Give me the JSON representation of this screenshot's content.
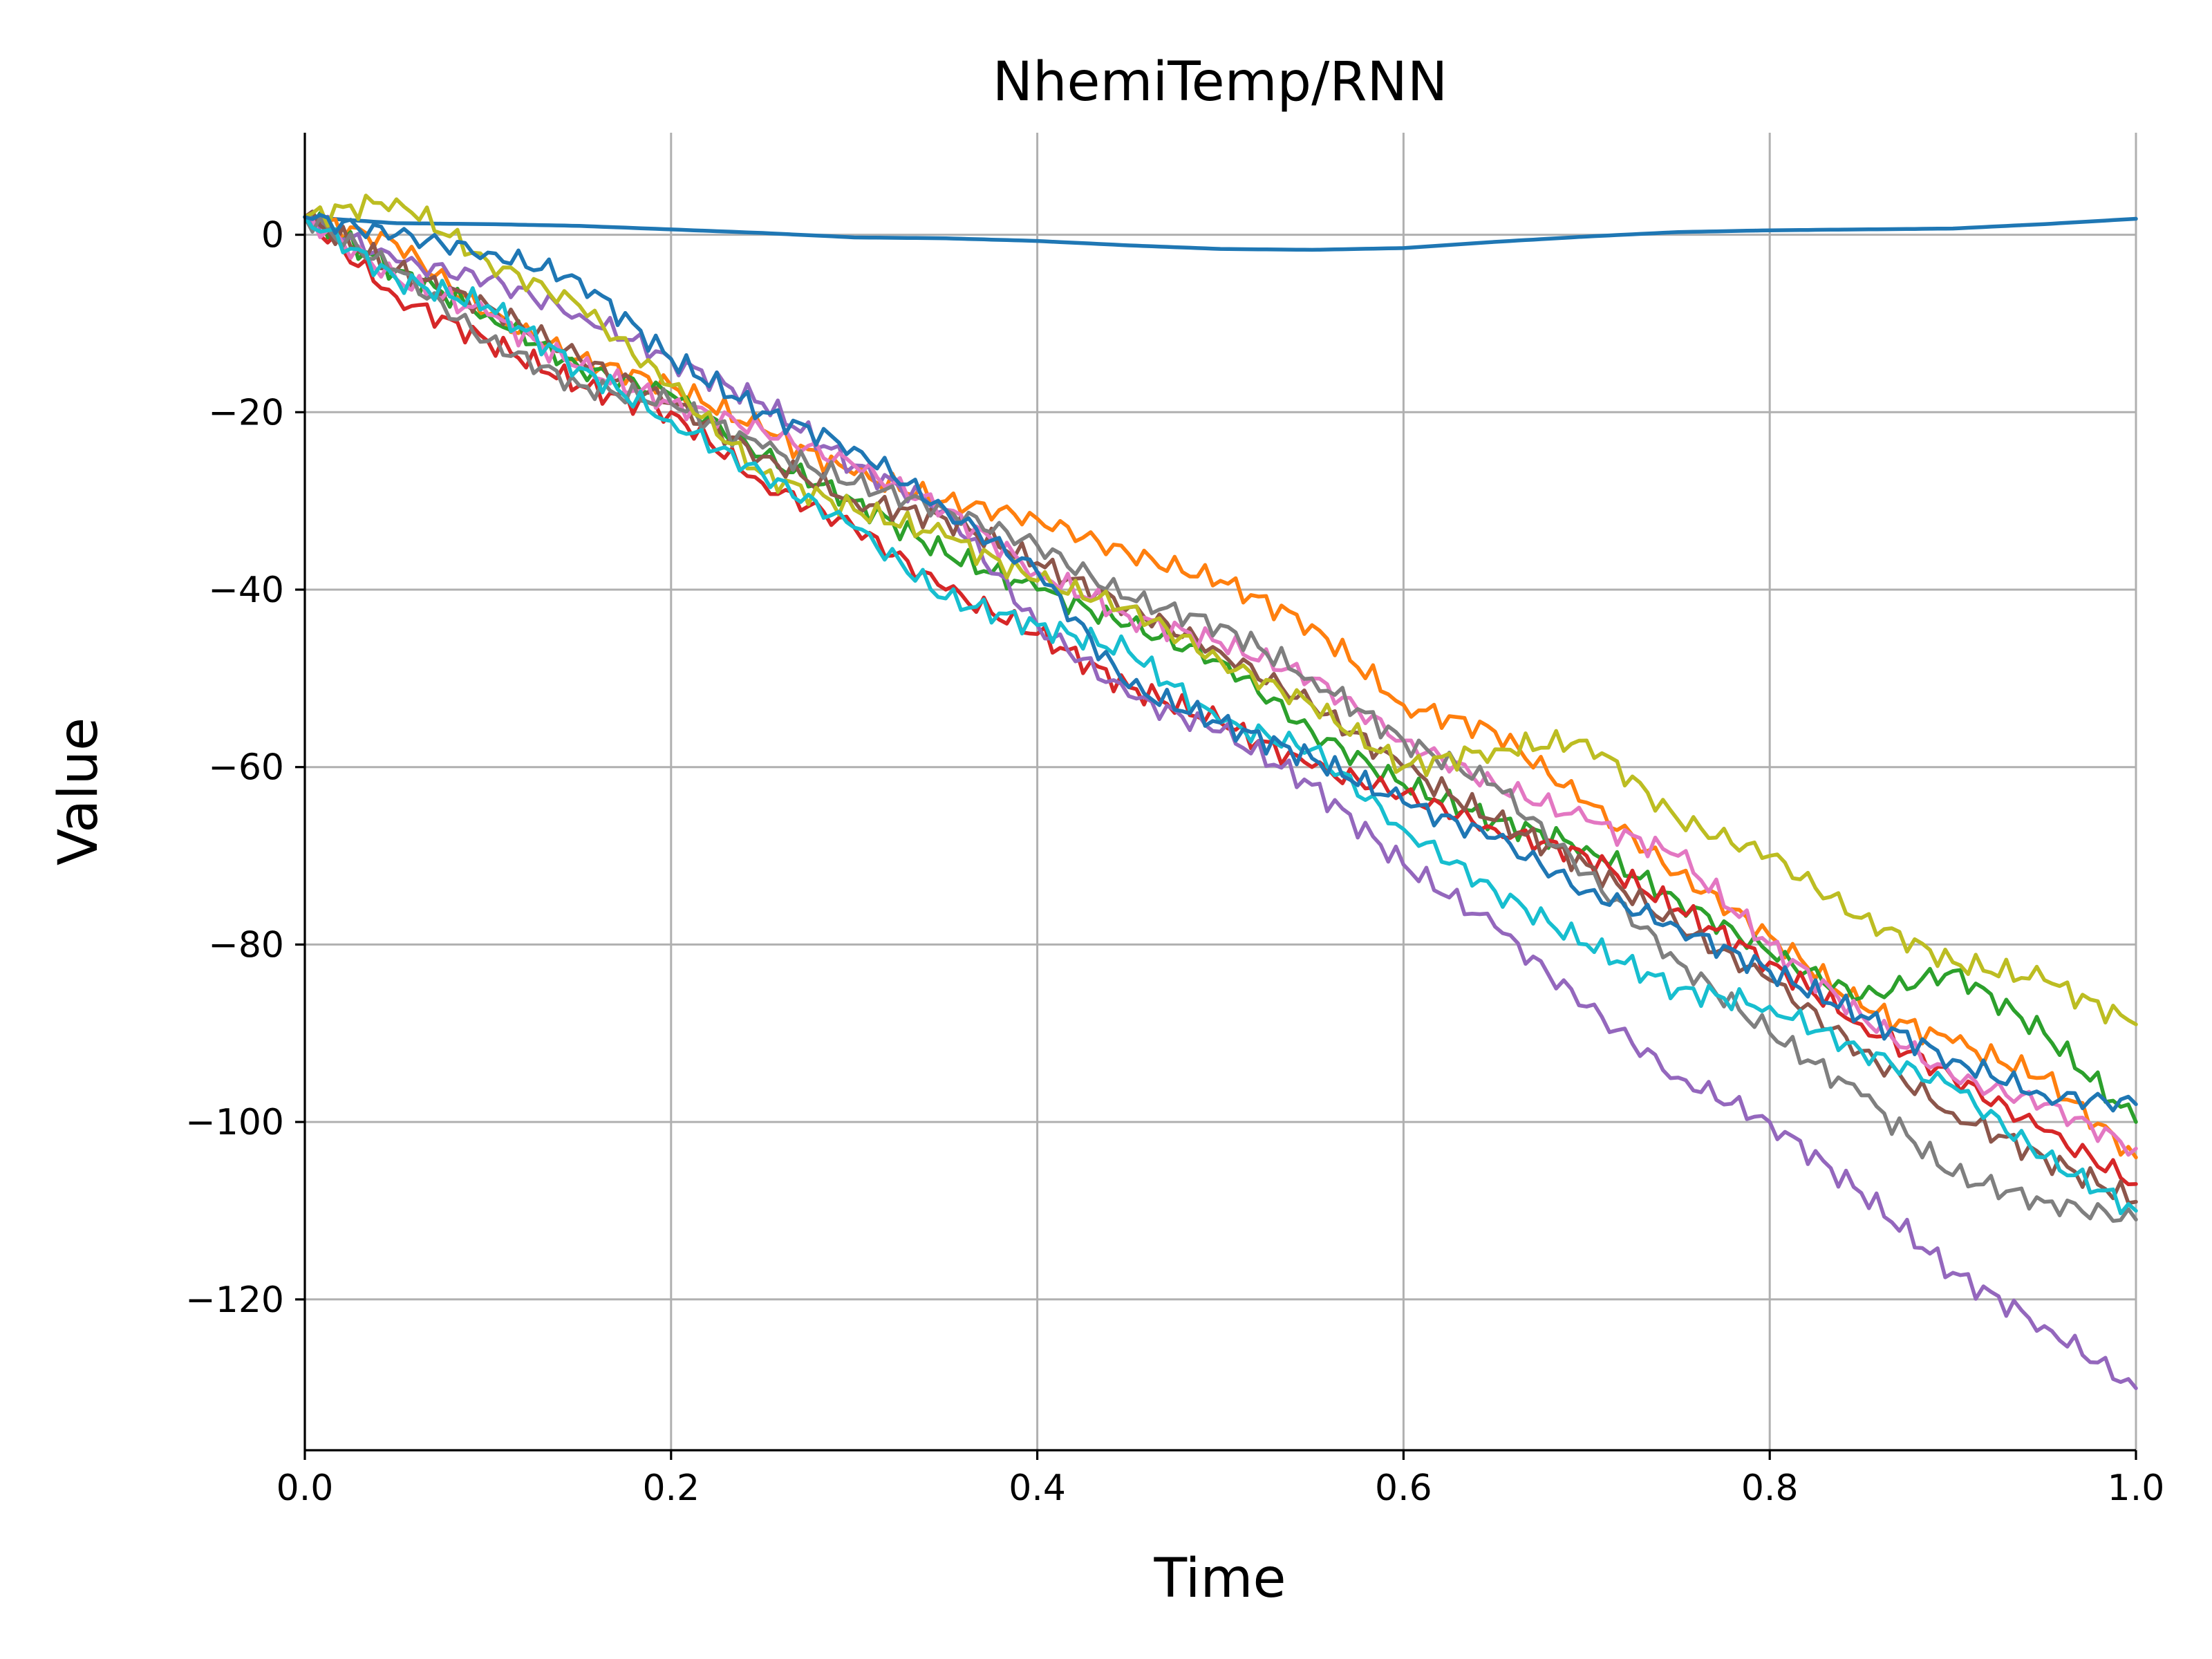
{
  "chart_data": {
    "type": "line",
    "title": "NhemiTemp/RNN",
    "xlabel": "Time",
    "ylabel": "Value",
    "xlim": [
      0.0,
      1.0
    ],
    "ylim": [
      -137,
      11.5
    ],
    "grid": true,
    "legend": "none",
    "xticks": [
      0.0,
      0.2,
      0.4,
      0.6,
      0.8,
      1.0
    ],
    "xtick_labels": [
      "0.0",
      "0.2",
      "0.4",
      "0.6",
      "0.8",
      "1.0"
    ],
    "yticks": [
      0,
      -20,
      -40,
      -60,
      -80,
      -100,
      -120
    ],
    "ytick_labels": [
      "0",
      "−20",
      "−40",
      "−60",
      "−80",
      "−100",
      "−120"
    ],
    "series": [
      {
        "color": "#1f77b4",
        "x": [
          0.0,
          0.05,
          0.1,
          0.15,
          0.2,
          0.25,
          0.3,
          0.35,
          0.4,
          0.45,
          0.5,
          0.55,
          0.6,
          0.65,
          0.7,
          0.75,
          0.8,
          0.85,
          0.9,
          0.95,
          1.0
        ],
        "y": [
          2,
          1.3,
          1.2,
          1.0,
          0.6,
          0.2,
          -0.3,
          -0.4,
          -0.7,
          -1.2,
          -1.6,
          -1.7,
          -1.5,
          -0.8,
          -0.2,
          0.3,
          0.5,
          0.6,
          0.7,
          1.2,
          1.8
        ]
      },
      {
        "color": "#ff7f0e",
        "x": [
          0.0,
          0.05,
          0.1,
          0.15,
          0.2,
          0.25,
          0.3,
          0.35,
          0.4,
          0.45,
          0.5,
          0.55,
          0.6,
          0.65,
          0.7,
          0.75,
          0.8,
          0.85,
          0.9,
          0.95,
          1.0
        ],
        "y": [
          2,
          -1,
          -9,
          -14,
          -17,
          -22,
          -27,
          -30,
          -32,
          -36,
          -39,
          -44,
          -53,
          -56,
          -64,
          -72,
          -79,
          -87,
          -91,
          -95,
          -104
        ]
      },
      {
        "color": "#2ca02c",
        "x": [
          0.0,
          0.05,
          0.1,
          0.15,
          0.2,
          0.25,
          0.3,
          0.35,
          0.4,
          0.45,
          0.5,
          0.55,
          0.6,
          0.65,
          0.7,
          0.75,
          0.8,
          0.85,
          0.9,
          0.95,
          1.0
        ],
        "y": [
          2,
          -4,
          -9,
          -15,
          -18,
          -25,
          -30,
          -36,
          -40,
          -44,
          -48,
          -56,
          -62,
          -66,
          -69,
          -75,
          -81,
          -86,
          -83,
          -90,
          -100
        ]
      },
      {
        "color": "#d62728",
        "x": [
          0.0,
          0.05,
          0.1,
          0.15,
          0.2,
          0.25,
          0.3,
          0.35,
          0.4,
          0.45,
          0.5,
          0.55,
          0.6,
          0.65,
          0.7,
          0.75,
          0.8,
          0.85,
          0.9,
          0.95,
          1.0
        ],
        "y": [
          2,
          -7,
          -12,
          -17,
          -20,
          -28,
          -33,
          -40,
          -45,
          -51,
          -55,
          -60,
          -63,
          -67,
          -70,
          -76,
          -82,
          -89,
          -95,
          -101,
          -107
        ]
      },
      {
        "color": "#9467bd",
        "x": [
          0.0,
          0.05,
          0.1,
          0.15,
          0.2,
          0.25,
          0.3,
          0.35,
          0.4,
          0.45,
          0.5,
          0.55,
          0.6,
          0.65,
          0.7,
          0.75,
          0.8,
          0.85,
          0.9,
          0.95,
          1.0
        ],
        "y": [
          2,
          -3,
          -5,
          -9,
          -14,
          -19,
          -26,
          -31,
          -44,
          -52,
          -56,
          -62,
          -71,
          -78,
          -87,
          -95,
          -100,
          -108,
          -117,
          -123,
          -130
        ]
      },
      {
        "color": "#8c564b",
        "x": [
          0.0,
          0.05,
          0.1,
          0.15,
          0.2,
          0.25,
          0.3,
          0.35,
          0.4,
          0.45,
          0.5,
          0.55,
          0.6,
          0.65,
          0.7,
          0.75,
          0.8,
          0.85,
          0.9,
          0.95,
          1.0
        ],
        "y": [
          2,
          -4,
          -8,
          -14,
          -19,
          -25,
          -30,
          -32,
          -37,
          -42,
          -47,
          -53,
          -60,
          -66,
          -71,
          -78,
          -84,
          -92,
          -99,
          -104,
          -109
        ]
      },
      {
        "color": "#e377c2",
        "x": [
          0.0,
          0.05,
          0.1,
          0.15,
          0.2,
          0.25,
          0.3,
          0.35,
          0.4,
          0.45,
          0.5,
          0.55,
          0.6,
          0.65,
          0.7,
          0.75,
          0.8,
          0.85,
          0.9,
          0.95,
          1.0
        ],
        "y": [
          2,
          -5,
          -9,
          -15,
          -19,
          -22,
          -26,
          -31,
          -38,
          -43,
          -46,
          -50,
          -57,
          -62,
          -66,
          -70,
          -80,
          -88,
          -95,
          -98,
          -103
        ]
      },
      {
        "color": "#7f7f7f",
        "x": [
          0.0,
          0.05,
          0.1,
          0.15,
          0.2,
          0.25,
          0.3,
          0.35,
          0.4,
          0.45,
          0.5,
          0.55,
          0.6,
          0.65,
          0.7,
          0.75,
          0.8,
          0.85,
          0.9,
          0.95,
          1.0
        ],
        "y": [
          2,
          -4,
          -12,
          -17,
          -19,
          -24,
          -28,
          -31,
          -35,
          -41,
          -44,
          -50,
          -57,
          -62,
          -72,
          -82,
          -90,
          -97,
          -106,
          -109,
          -111
        ]
      },
      {
        "color": "#bcbd22",
        "x": [
          0.0,
          0.05,
          0.1,
          0.15,
          0.2,
          0.25,
          0.3,
          0.35,
          0.4,
          0.45,
          0.5,
          0.55,
          0.6,
          0.65,
          0.7,
          0.75,
          0.8,
          0.85,
          0.9,
          0.95,
          1.0
        ],
        "y": [
          2,
          4,
          -3,
          -8,
          -17,
          -27,
          -31,
          -34,
          -39,
          -42,
          -48,
          -53,
          -60,
          -58,
          -57,
          -66,
          -70,
          -77,
          -82,
          -84,
          -89
        ]
      },
      {
        "color": "#17becf",
        "x": [
          0.0,
          0.05,
          0.1,
          0.15,
          0.2,
          0.25,
          0.3,
          0.35,
          0.4,
          0.45,
          0.5,
          0.55,
          0.6,
          0.65,
          0.7,
          0.75,
          0.8,
          0.85,
          0.9,
          0.95,
          1.0
        ],
        "y": [
          2,
          -5,
          -8,
          -15,
          -21,
          -27,
          -33,
          -41,
          -44,
          -47,
          -55,
          -58,
          -67,
          -74,
          -80,
          -85,
          -87,
          -92,
          -96,
          -104,
          -110
        ]
      },
      {
        "color": "#1f77b4",
        "x": [
          0.0,
          0.05,
          0.1,
          0.15,
          0.2,
          0.25,
          0.3,
          0.35,
          0.4,
          0.45,
          0.5,
          0.55,
          0.6,
          0.65,
          0.7,
          0.75,
          0.8,
          0.85,
          0.9,
          0.95,
          1.0
        ],
        "y": [
          2,
          0,
          -2,
          -5,
          -14,
          -20,
          -24,
          -31,
          -38,
          -51,
          -55,
          -59,
          -64,
          -68,
          -74,
          -78,
          -83,
          -88,
          -93,
          -97,
          -98
        ]
      }
    ]
  }
}
